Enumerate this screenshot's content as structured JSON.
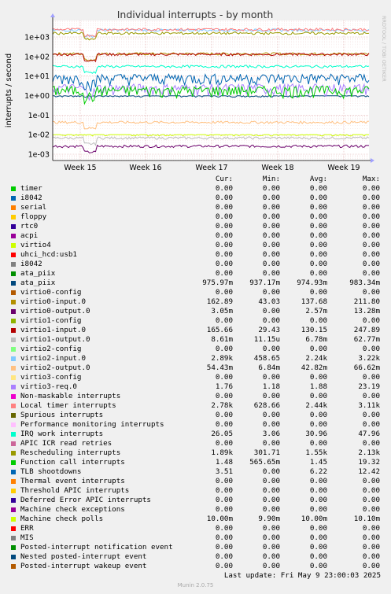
{
  "chart_data": {
    "type": "line",
    "title": "Individual interrupts - by month",
    "ylabel": "interrupts / second",
    "y_scale": "log",
    "ylim": [
      0.0005,
      5000
    ],
    "y_ticks": [
      "1e+03",
      "1e+02",
      "1e+01",
      "1e+00",
      "1e-01",
      "1e-02",
      "1e-03"
    ],
    "x_ticks": [
      "Week 15",
      "Week 16",
      "Week 17",
      "Week 18",
      "Week 19"
    ],
    "grid": true,
    "watermark": "RRDTOOL / TOBI OETIKER",
    "series_colors": {
      "virtio0-input.0": "#cc9900",
      "ata_piix": "#99aa00",
      "virtio1-input.0": "#990000",
      "Local timer interrupts": "#e0c0a0",
      "Rescheduling interrupts": "#aabb66",
      "Function call interrupts": "#00c8c8",
      "IRQ work interrupts": "#33ffcc",
      "TLB shootdowns": "#1166bb",
      "virtio1-output.0": "#cc6699",
      "virtio2-output.0": "#ffbb88",
      "virtio3-req.0": "#66aa00",
      "Machine check polls": "#990099"
    }
  },
  "legend": {
    "headers": [
      "Cur:",
      "Min:",
      "Avg:",
      "Max:"
    ],
    "rows": [
      {
        "name": "timer",
        "color": "#00cc00",
        "cur": "0.00",
        "min": "0.00",
        "avg": "0.00",
        "max": "0.00"
      },
      {
        "name": "i8042",
        "color": "#0066b3",
        "cur": "0.00",
        "min": "0.00",
        "avg": "0.00",
        "max": "0.00"
      },
      {
        "name": "serial",
        "color": "#ff8000",
        "cur": "0.00",
        "min": "0.00",
        "avg": "0.00",
        "max": "0.00"
      },
      {
        "name": "floppy",
        "color": "#ffcc00",
        "cur": "0.00",
        "min": "0.00",
        "avg": "0.00",
        "max": "0.00"
      },
      {
        "name": "rtc0",
        "color": "#330099",
        "cur": "0.00",
        "min": "0.00",
        "avg": "0.00",
        "max": "0.00"
      },
      {
        "name": "acpi",
        "color": "#990099",
        "cur": "0.00",
        "min": "0.00",
        "avg": "0.00",
        "max": "0.00"
      },
      {
        "name": "virtio4",
        "color": "#ccff00",
        "cur": "0.00",
        "min": "0.00",
        "avg": "0.00",
        "max": "0.00"
      },
      {
        "name": "uhci_hcd:usb1",
        "color": "#ff0000",
        "cur": "0.00",
        "min": "0.00",
        "avg": "0.00",
        "max": "0.00"
      },
      {
        "name": "i8042",
        "color": "#808080",
        "cur": "0.00",
        "min": "0.00",
        "avg": "0.00",
        "max": "0.00"
      },
      {
        "name": "ata_piix",
        "color": "#008f00",
        "cur": "0.00",
        "min": "0.00",
        "avg": "0.00",
        "max": "0.00"
      },
      {
        "name": "ata_piix",
        "color": "#00487d",
        "cur": "975.97m",
        "min": "937.17m",
        "avg": "974.93m",
        "max": "983.34m"
      },
      {
        "name": "virtio0-config",
        "color": "#b35a00",
        "cur": "0.00",
        "min": "0.00",
        "avg": "0.00",
        "max": "0.00"
      },
      {
        "name": "virtio0-input.0",
        "color": "#b38f00",
        "cur": "162.89",
        "min": "43.03",
        "avg": "137.68",
        "max": "211.80"
      },
      {
        "name": "virtio0-output.0",
        "color": "#6b006b",
        "cur": "3.05m",
        "min": "0.00",
        "avg": "2.57m",
        "max": "13.28m"
      },
      {
        "name": "virtio1-config",
        "color": "#8fb300",
        "cur": "0.00",
        "min": "0.00",
        "avg": "0.00",
        "max": "0.00"
      },
      {
        "name": "virtio1-input.0",
        "color": "#b30000",
        "cur": "165.66",
        "min": "29.43",
        "avg": "130.15",
        "max": "247.89"
      },
      {
        "name": "virtio1-output.0",
        "color": "#bebebe",
        "cur": "8.61m",
        "min": "11.15u",
        "avg": "6.78m",
        "max": "62.77m"
      },
      {
        "name": "virtio2-config",
        "color": "#80ff80",
        "cur": "0.00",
        "min": "0.00",
        "avg": "0.00",
        "max": "0.00"
      },
      {
        "name": "virtio2-input.0",
        "color": "#80c9ff",
        "cur": "2.89k",
        "min": "458.65",
        "avg": "2.24k",
        "max": "3.22k"
      },
      {
        "name": "virtio2-output.0",
        "color": "#ffc080",
        "cur": "54.43m",
        "min": "6.84m",
        "avg": "42.82m",
        "max": "66.62m"
      },
      {
        "name": "virtio3-config",
        "color": "#ffe680",
        "cur": "0.00",
        "min": "0.00",
        "avg": "0.00",
        "max": "0.00"
      },
      {
        "name": "virtio3-req.0",
        "color": "#aa80ff",
        "cur": "1.76",
        "min": "1.18",
        "avg": "1.88",
        "max": "23.19"
      },
      {
        "name": "Non-maskable interrupts",
        "color": "#ee00cc",
        "cur": "0.00",
        "min": "0.00",
        "avg": "0.00",
        "max": "0.00"
      },
      {
        "name": "Local timer interrupts",
        "color": "#ff8080",
        "cur": "2.78k",
        "min": "628.66",
        "avg": "2.44k",
        "max": "3.11k"
      },
      {
        "name": "Spurious interrupts",
        "color": "#666600",
        "cur": "0.00",
        "min": "0.00",
        "avg": "0.00",
        "max": "0.00"
      },
      {
        "name": "Performance monitoring interrupts",
        "color": "#ffbfff",
        "cur": "0.00",
        "min": "0.00",
        "avg": "0.00",
        "max": "0.00"
      },
      {
        "name": "IRQ work interrupts",
        "color": "#00ffcc",
        "cur": "26.05",
        "min": "3.06",
        "avg": "30.96",
        "max": "47.96"
      },
      {
        "name": "APIC ICR read retries",
        "color": "#cc6699",
        "cur": "0.00",
        "min": "0.00",
        "avg": "0.00",
        "max": "0.00"
      },
      {
        "name": "Rescheduling interrupts",
        "color": "#999900",
        "cur": "1.89k",
        "min": "301.71",
        "avg": "1.55k",
        "max": "2.13k"
      },
      {
        "name": "Function call interrupts",
        "color": "#00cc00",
        "cur": "1.48",
        "min": "565.65m",
        "avg": "1.45",
        "max": "19.32"
      },
      {
        "name": "TLB shootdowns",
        "color": "#0066b3",
        "cur": "3.51",
        "min": "0.00",
        "avg": "6.22",
        "max": "12.42"
      },
      {
        "name": "Thermal event interrupts",
        "color": "#ff8000",
        "cur": "0.00",
        "min": "0.00",
        "avg": "0.00",
        "max": "0.00"
      },
      {
        "name": "Threshold APIC interrupts",
        "color": "#ffcc00",
        "cur": "0.00",
        "min": "0.00",
        "avg": "0.00",
        "max": "0.00"
      },
      {
        "name": "Deferred Error APIC interrupts",
        "color": "#330099",
        "cur": "0.00",
        "min": "0.00",
        "avg": "0.00",
        "max": "0.00"
      },
      {
        "name": "Machine check exceptions",
        "color": "#990099",
        "cur": "0.00",
        "min": "0.00",
        "avg": "0.00",
        "max": "0.00"
      },
      {
        "name": "Machine check polls",
        "color": "#ccff00",
        "cur": "10.00m",
        "min": "9.90m",
        "avg": "10.00m",
        "max": "10.10m"
      },
      {
        "name": "ERR",
        "color": "#ff0000",
        "cur": "0.00",
        "min": "0.00",
        "avg": "0.00",
        "max": "0.00"
      },
      {
        "name": "MIS",
        "color": "#808080",
        "cur": "0.00",
        "min": "0.00",
        "avg": "0.00",
        "max": "0.00"
      },
      {
        "name": "Posted-interrupt notification event",
        "color": "#008f00",
        "cur": "0.00",
        "min": "0.00",
        "avg": "0.00",
        "max": "0.00"
      },
      {
        "name": "Nested posted-interrupt event",
        "color": "#00487d",
        "cur": "0.00",
        "min": "0.00",
        "avg": "0.00",
        "max": "0.00"
      },
      {
        "name": "Posted-interrupt wakeup event",
        "color": "#b35a00",
        "cur": "0.00",
        "min": "0.00",
        "avg": "0.00",
        "max": "0.00"
      }
    ]
  },
  "footer": {
    "last_update": "Last update: Fri May  9 23:00:03 2025",
    "generator": "Munin 2.0.75"
  }
}
